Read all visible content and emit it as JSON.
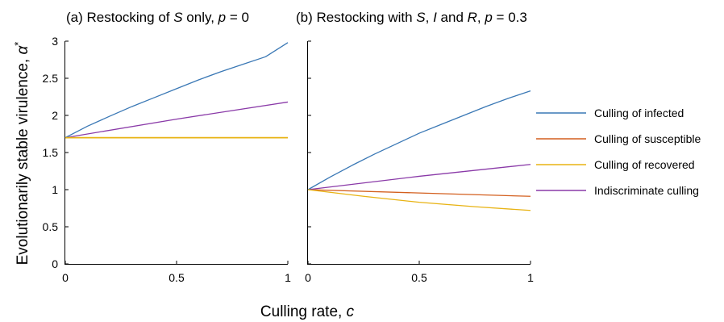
{
  "chart_data": [
    {
      "type": "line",
      "title": "(a) Restocking of S only, p = 0",
      "title_parts": {
        "pre": "(a) Restocking of ",
        "var1": "S",
        "mid": " only, ",
        "var2": "p",
        "post": " = 0"
      },
      "xlabel": "Culling rate, c",
      "xlabel_parts": {
        "pre": "Culling rate, ",
        "var": "c"
      },
      "ylabel": "Evolutionarily stable virulence, α*",
      "ylabel_parts": {
        "pre": "Evolutionarily stable virulence, ",
        "var": "α",
        "sup": "*"
      },
      "xlim": [
        0,
        1
      ],
      "ylim": [
        0,
        3
      ],
      "xticks": [
        "0",
        "0.5",
        "1"
      ],
      "yticks": [
        "0",
        "0.5",
        "1",
        "1.5",
        "2",
        "2.5",
        "3"
      ],
      "grid": false,
      "series": [
        {
          "name": "Culling of infected",
          "color": "#3a78b5",
          "x": [
            0,
            0.1,
            0.2,
            0.3,
            0.4,
            0.5,
            0.6,
            0.7,
            0.8,
            0.9,
            1
          ],
          "y": [
            1.7,
            1.855,
            1.99,
            2.12,
            2.24,
            2.36,
            2.48,
            2.59,
            2.69,
            2.79,
            2.98
          ]
        },
        {
          "name": "Culling of susceptible",
          "color": "#d35f1e",
          "x": [
            0,
            1
          ],
          "y": [
            1.7,
            1.7
          ]
        },
        {
          "name": "Culling of recovered",
          "color": "#e8b314",
          "x": [
            0,
            1
          ],
          "y": [
            1.7,
            1.7
          ]
        },
        {
          "name": "Indiscriminate culling",
          "color": "#8a3aa8",
          "x": [
            0,
            0.5,
            1
          ],
          "y": [
            1.7,
            1.95,
            2.18
          ]
        }
      ]
    },
    {
      "type": "line",
      "title": "(b) Restocking with S, I and R, p = 0.3",
      "title_parts": {
        "pre": "(b) Restocking with ",
        "var1": "S",
        "sep1": ", ",
        "var2": "I",
        "sep2": " and ",
        "var3": "R",
        "sep3": ", ",
        "var4": "p",
        "post": " = 0.3"
      },
      "xlim": [
        0,
        1
      ],
      "ylim": [
        0,
        3
      ],
      "xticks": [
        "0",
        "0.5",
        "1"
      ],
      "grid": false,
      "series": [
        {
          "name": "Culling of infected",
          "color": "#3a78b5",
          "x": [
            0,
            0.1,
            0.2,
            0.3,
            0.4,
            0.5,
            0.6,
            0.7,
            0.8,
            0.9,
            1
          ],
          "y": [
            1.0,
            1.17,
            1.33,
            1.48,
            1.62,
            1.76,
            1.88,
            2.0,
            2.12,
            2.23,
            2.33
          ]
        },
        {
          "name": "Culling of susceptible",
          "color": "#d35f1e",
          "x": [
            0,
            0.5,
            1
          ],
          "y": [
            1.0,
            0.955,
            0.91
          ]
        },
        {
          "name": "Culling of recovered",
          "color": "#e8b314",
          "x": [
            0,
            0.25,
            0.5,
            0.75,
            1
          ],
          "y": [
            1.0,
            0.91,
            0.83,
            0.77,
            0.72
          ]
        },
        {
          "name": "Indiscriminate culling",
          "color": "#8a3aa8",
          "x": [
            0,
            0.5,
            1
          ],
          "y": [
            1.0,
            1.18,
            1.34
          ]
        }
      ]
    }
  ],
  "legend": {
    "placement": "right",
    "items": [
      {
        "label": "Culling of infected",
        "color": "#3a78b5"
      },
      {
        "label": "Culling of susceptible",
        "color": "#d35f1e"
      },
      {
        "label": "Culling of recovered",
        "color": "#e8b314"
      },
      {
        "label": "Indiscriminate culling",
        "color": "#8a3aa8"
      }
    ]
  }
}
